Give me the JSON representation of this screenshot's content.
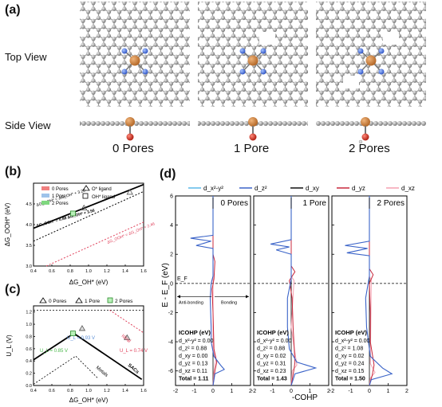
{
  "panel_a": {
    "label": "(a)",
    "row_labels": {
      "top": "Top View",
      "side": "Side View"
    },
    "columns": [
      "0 Pores",
      "1 Pore",
      "2 Pores"
    ]
  },
  "panel_b": {
    "label": "(b)",
    "xlabel": "ΔG_OH* (eV)",
    "ylabel": "ΔG_OOH* (eV)",
    "xticks": [
      "0.4",
      "0.6",
      "0.8",
      "1.0",
      "1.2",
      "1.4",
      "1.6"
    ],
    "yticks": [
      "3.0",
      "3.5",
      "4.0",
      "4.5"
    ],
    "legend": [
      "0 Pores",
      "1 Pore",
      "2 Pores",
      "O* ligand",
      "OH* ligand"
    ],
    "annotations": [
      "ΔG_OOH* = ΔG_OH* + 3.20",
      "ΔG_OOH* = 0.88 ΔG_OH* + 3.56",
      "ΔG_OOH* = ΔG_OH* + 2.46"
    ],
    "colors": {
      "zero": "#f08080",
      "one": "#9ec3ea",
      "two": "#7fd87f"
    }
  },
  "panel_c": {
    "label": "(c)",
    "xlabel": "ΔG_OH* (eV)",
    "ylabel": "U_L (V)",
    "xticks": [
      "0.4",
      "0.6",
      "0.8",
      "1.0",
      "1.2",
      "1.4",
      "1.6"
    ],
    "yticks": [
      "0.0",
      "0.2",
      "0.4",
      "0.6",
      "0.8",
      "1.0",
      "1.2"
    ],
    "legend": [
      "0 Pores",
      "1 Pore",
      "2 Pores"
    ],
    "annotations": [
      "U_L = 0.93 V",
      "U_L = 0.85 V",
      "U_L = 0.74 V",
      "Ideal",
      "Metals",
      "SACs"
    ]
  },
  "panel_d": {
    "label": "(d)",
    "legend": [
      "d_x²-y²",
      "d_z²",
      "d_xy",
      "d_yz",
      "d_xz"
    ],
    "legend_colors": [
      "#5bb8e8",
      "#3a63c8",
      "#111111",
      "#c8283c",
      "#f4a0b0"
    ],
    "ylabel": "E - E_F (eV)",
    "xlabel": "-COHP",
    "ef_label": "E_F",
    "antibonding": "Anti-bonding",
    "bonding": "Bonding",
    "yticks": [
      "-6",
      "-4",
      "-2",
      "0",
      "2",
      "4",
      "6"
    ],
    "xticks": [
      "-2",
      "-1",
      "0",
      "1",
      "2"
    ],
    "subpanels": [
      {
        "title": "0 Pores",
        "icohp_title": "ICOHP (eV)",
        "rows": [
          "d_x²-y² = 0.00",
          "d_z² = 0.88",
          "d_xy = 0.00",
          "d_yz = 0.13",
          "d_xz = 0.11"
        ],
        "total": "Total = 1.11"
      },
      {
        "title": "1 Pore",
        "icohp_title": "ICOHP (eV)",
        "rows": [
          "d_x²-y² = 0.00",
          "d_z² = 0.88",
          "d_xy = 0.02",
          "d_yz = 0.31",
          "d_xz = 0.23"
        ],
        "total": "Total = 1.43"
      },
      {
        "title": "2 Pores",
        "icohp_title": "ICOHP (eV)",
        "rows": [
          "d_x²-y² = 0.00",
          "d_z² = 1.08",
          "d_xy = 0.02",
          "d_yz = 0.24",
          "d_xz = 0.15"
        ],
        "total": "Total = 1.50"
      }
    ]
  },
  "chart_data": [
    {
      "type": "scatter",
      "title": "",
      "xlabel": "ΔG_OH* (eV)",
      "ylabel": "ΔG_OOH* (eV)",
      "xlim": [
        0.4,
        1.6
      ],
      "ylim": [
        3.0,
        5.0
      ],
      "series": [
        {
          "name": "2 Pores",
          "x": [
            0.83
          ],
          "y": [
            4.27
          ]
        },
        {
          "name": "1 Pore",
          "x": [
            0.95
          ],
          "y": [
            4.4
          ]
        },
        {
          "name": "0 Pores",
          "x": [
            1.45
          ],
          "y": [
            4.78
          ]
        }
      ],
      "lines": [
        {
          "label": "ΔG_OOH* = ΔG_OH* + 3.20",
          "slope": 1.0,
          "intercept": 3.2
        },
        {
          "label": "ΔG_OOH* = 0.88 ΔG_OH* + 3.56",
          "slope": 0.88,
          "intercept": 3.56
        },
        {
          "label": "ΔG_OOH* = ΔG_OH* + 2.46",
          "slope": 1.0,
          "intercept": 2.46
        }
      ]
    },
    {
      "type": "scatter",
      "title": "",
      "xlabel": "ΔG_OH* (eV)",
      "ylabel": "U_L (V)",
      "xlim": [
        0.4,
        1.6
      ],
      "ylim": [
        0.0,
        1.3
      ],
      "series": [
        {
          "name": "2 Pores",
          "x": [
            0.83
          ],
          "y": [
            0.85
          ]
        },
        {
          "name": "1 Pore",
          "x": [
            0.93
          ],
          "y": [
            0.93
          ]
        },
        {
          "name": "0 Pores",
          "x": [
            1.42
          ],
          "y": [
            0.78
          ]
        }
      ]
    },
    {
      "type": "line",
      "title": "0 Pores",
      "xlabel": "-COHP",
      "ylabel": "E - E_F (eV)",
      "xlim": [
        -2,
        2
      ],
      "ylim": [
        -7,
        6
      ]
    },
    {
      "type": "line",
      "title": "1 Pore",
      "xlabel": "-COHP",
      "ylabel": "E - E_F (eV)",
      "xlim": [
        -2,
        2
      ],
      "ylim": [
        -7,
        6
      ]
    },
    {
      "type": "line",
      "title": "2 Pores",
      "xlabel": "-COHP",
      "ylabel": "E - E_F (eV)",
      "xlim": [
        -2,
        2
      ],
      "ylim": [
        -7,
        6
      ]
    }
  ]
}
